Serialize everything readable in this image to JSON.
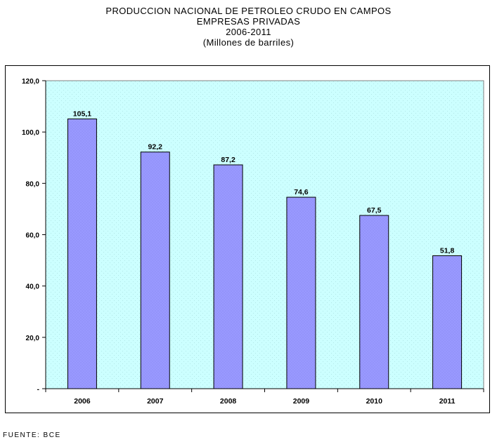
{
  "title_lines": [
    "PRODUCCION NACIONAL DE PETROLEO CRUDO EN CAMPOS",
    "EMPRESAS PRIVADAS",
    "2006-2011",
    "(Millones de barriles)"
  ],
  "source": "FUENTE: BCE",
  "chart_data": {
    "type": "bar",
    "title": "PRODUCCION NACIONAL DE PETROLEO CRUDO EN CAMPOS EMPRESAS PRIVADAS 2006-2011",
    "subtitle": "(Millones de barriles)",
    "xlabel": "",
    "ylabel": "",
    "categories": [
      "2006",
      "2007",
      "2008",
      "2009",
      "2010",
      "2011"
    ],
    "values": [
      105.1,
      92.2,
      87.2,
      74.6,
      67.5,
      51.8
    ],
    "data_labels": [
      "105,1",
      "92,2",
      "87,2",
      "74,6",
      "67,5",
      "51,8"
    ],
    "ylim": [
      0,
      120
    ],
    "yticks": [
      0,
      20,
      40,
      60,
      80,
      100,
      120
    ],
    "ytick_labels": [
      "-",
      "20,0",
      "40,0",
      "60,0",
      "80,0",
      "100,0",
      "120,0"
    ],
    "grid": false,
    "legend": "none",
    "colors": {
      "bar_fill": "#9999ff",
      "bar_stroke": "#000000",
      "plot_background": "#ccffff"
    }
  }
}
